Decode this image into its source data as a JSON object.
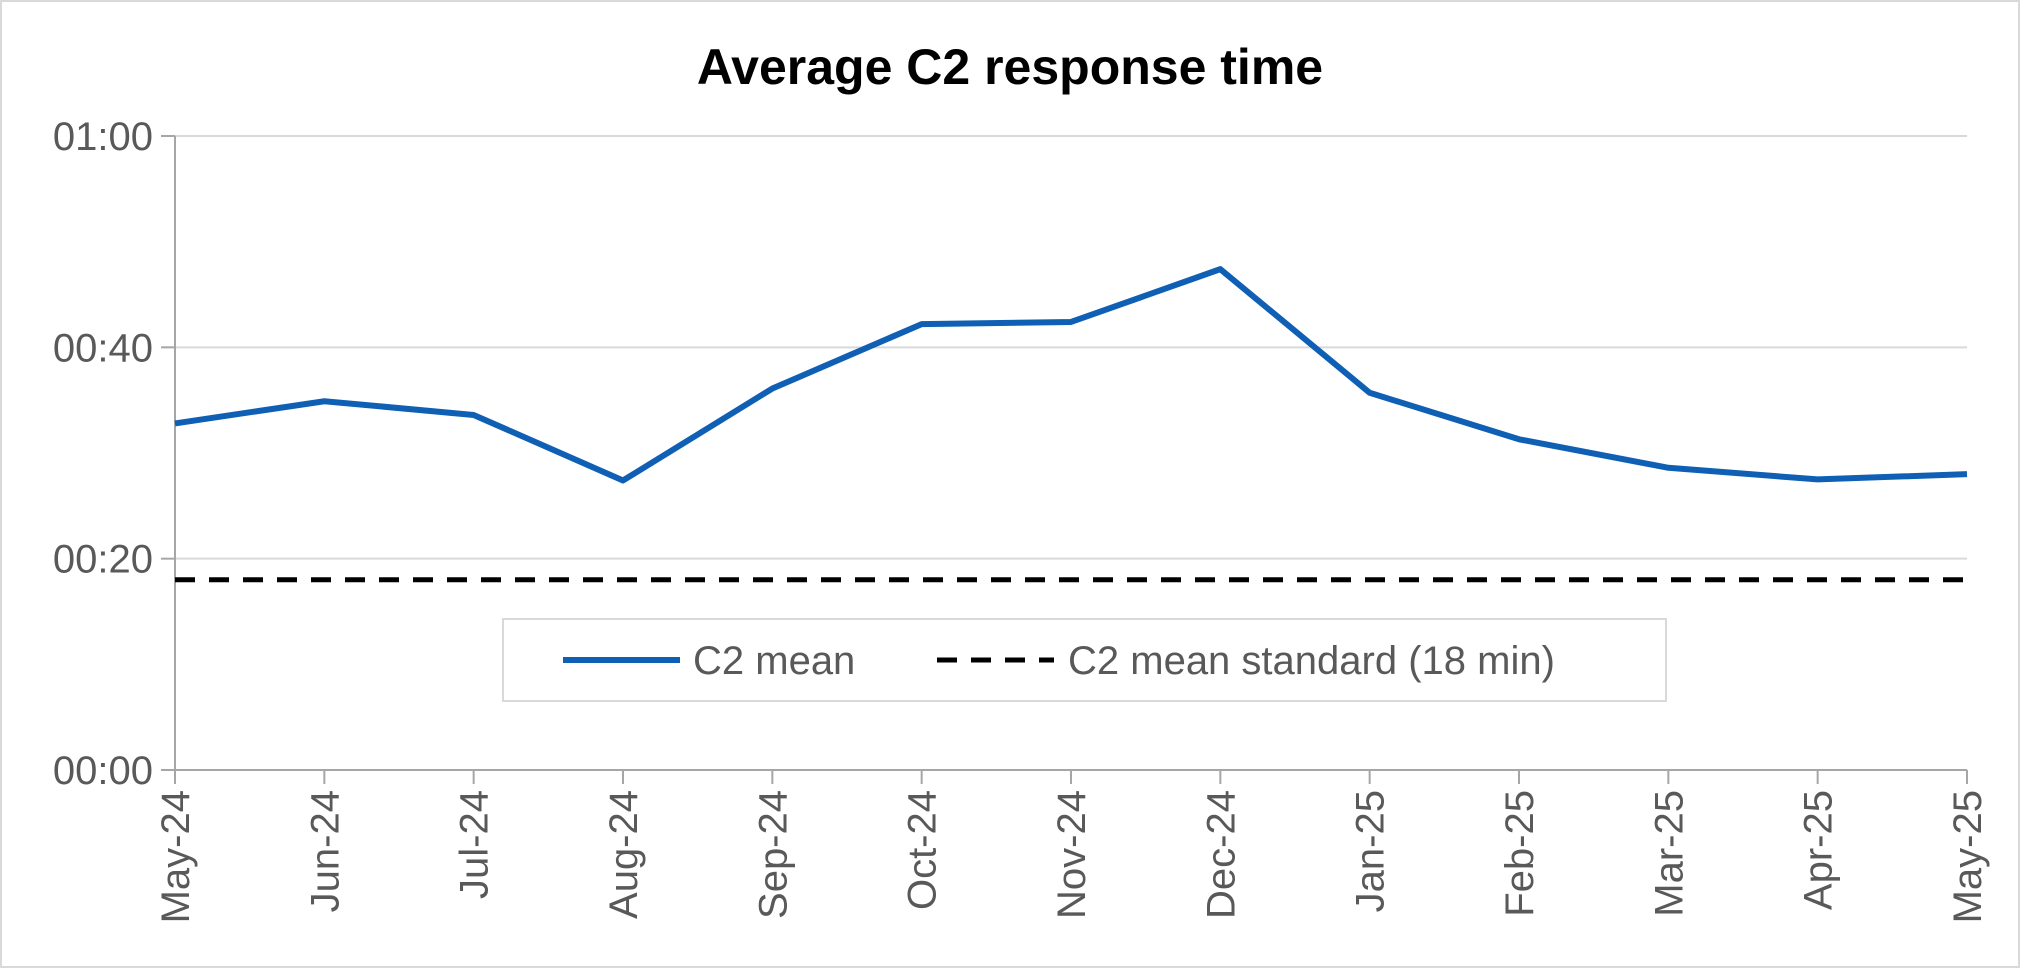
{
  "chart_data": {
    "type": "line",
    "title": "Average C2 response time",
    "xlabel": "",
    "ylabel": "",
    "categories": [
      "May-24",
      "Jun-24",
      "Jul-24",
      "Aug-24",
      "Sep-24",
      "Oct-24",
      "Nov-24",
      "Dec-24",
      "Jan-25",
      "Feb-25",
      "Mar-25",
      "Apr-25",
      "May-25"
    ],
    "y_unit": "minutes",
    "ylim": [
      0,
      60
    ],
    "yticks": [
      0,
      20,
      40,
      60
    ],
    "ytick_labels": [
      "00:00",
      "00:20",
      "00:40",
      "01:00"
    ],
    "grid": true,
    "legend_position": "bottom-center",
    "series": [
      {
        "name": "C2 mean",
        "color": "#0f5fb5",
        "style": "solid",
        "values": [
          32.8,
          34.9,
          33.6,
          27.4,
          36.1,
          42.2,
          42.4,
          47.4,
          35.7,
          31.3,
          28.6,
          27.5,
          28.0
        ]
      },
      {
        "name": "C2 mean standard (18 min)",
        "color": "#000000",
        "style": "dashed",
        "values": [
          18,
          18,
          18,
          18,
          18,
          18,
          18,
          18,
          18,
          18,
          18,
          18,
          18
        ]
      }
    ]
  }
}
